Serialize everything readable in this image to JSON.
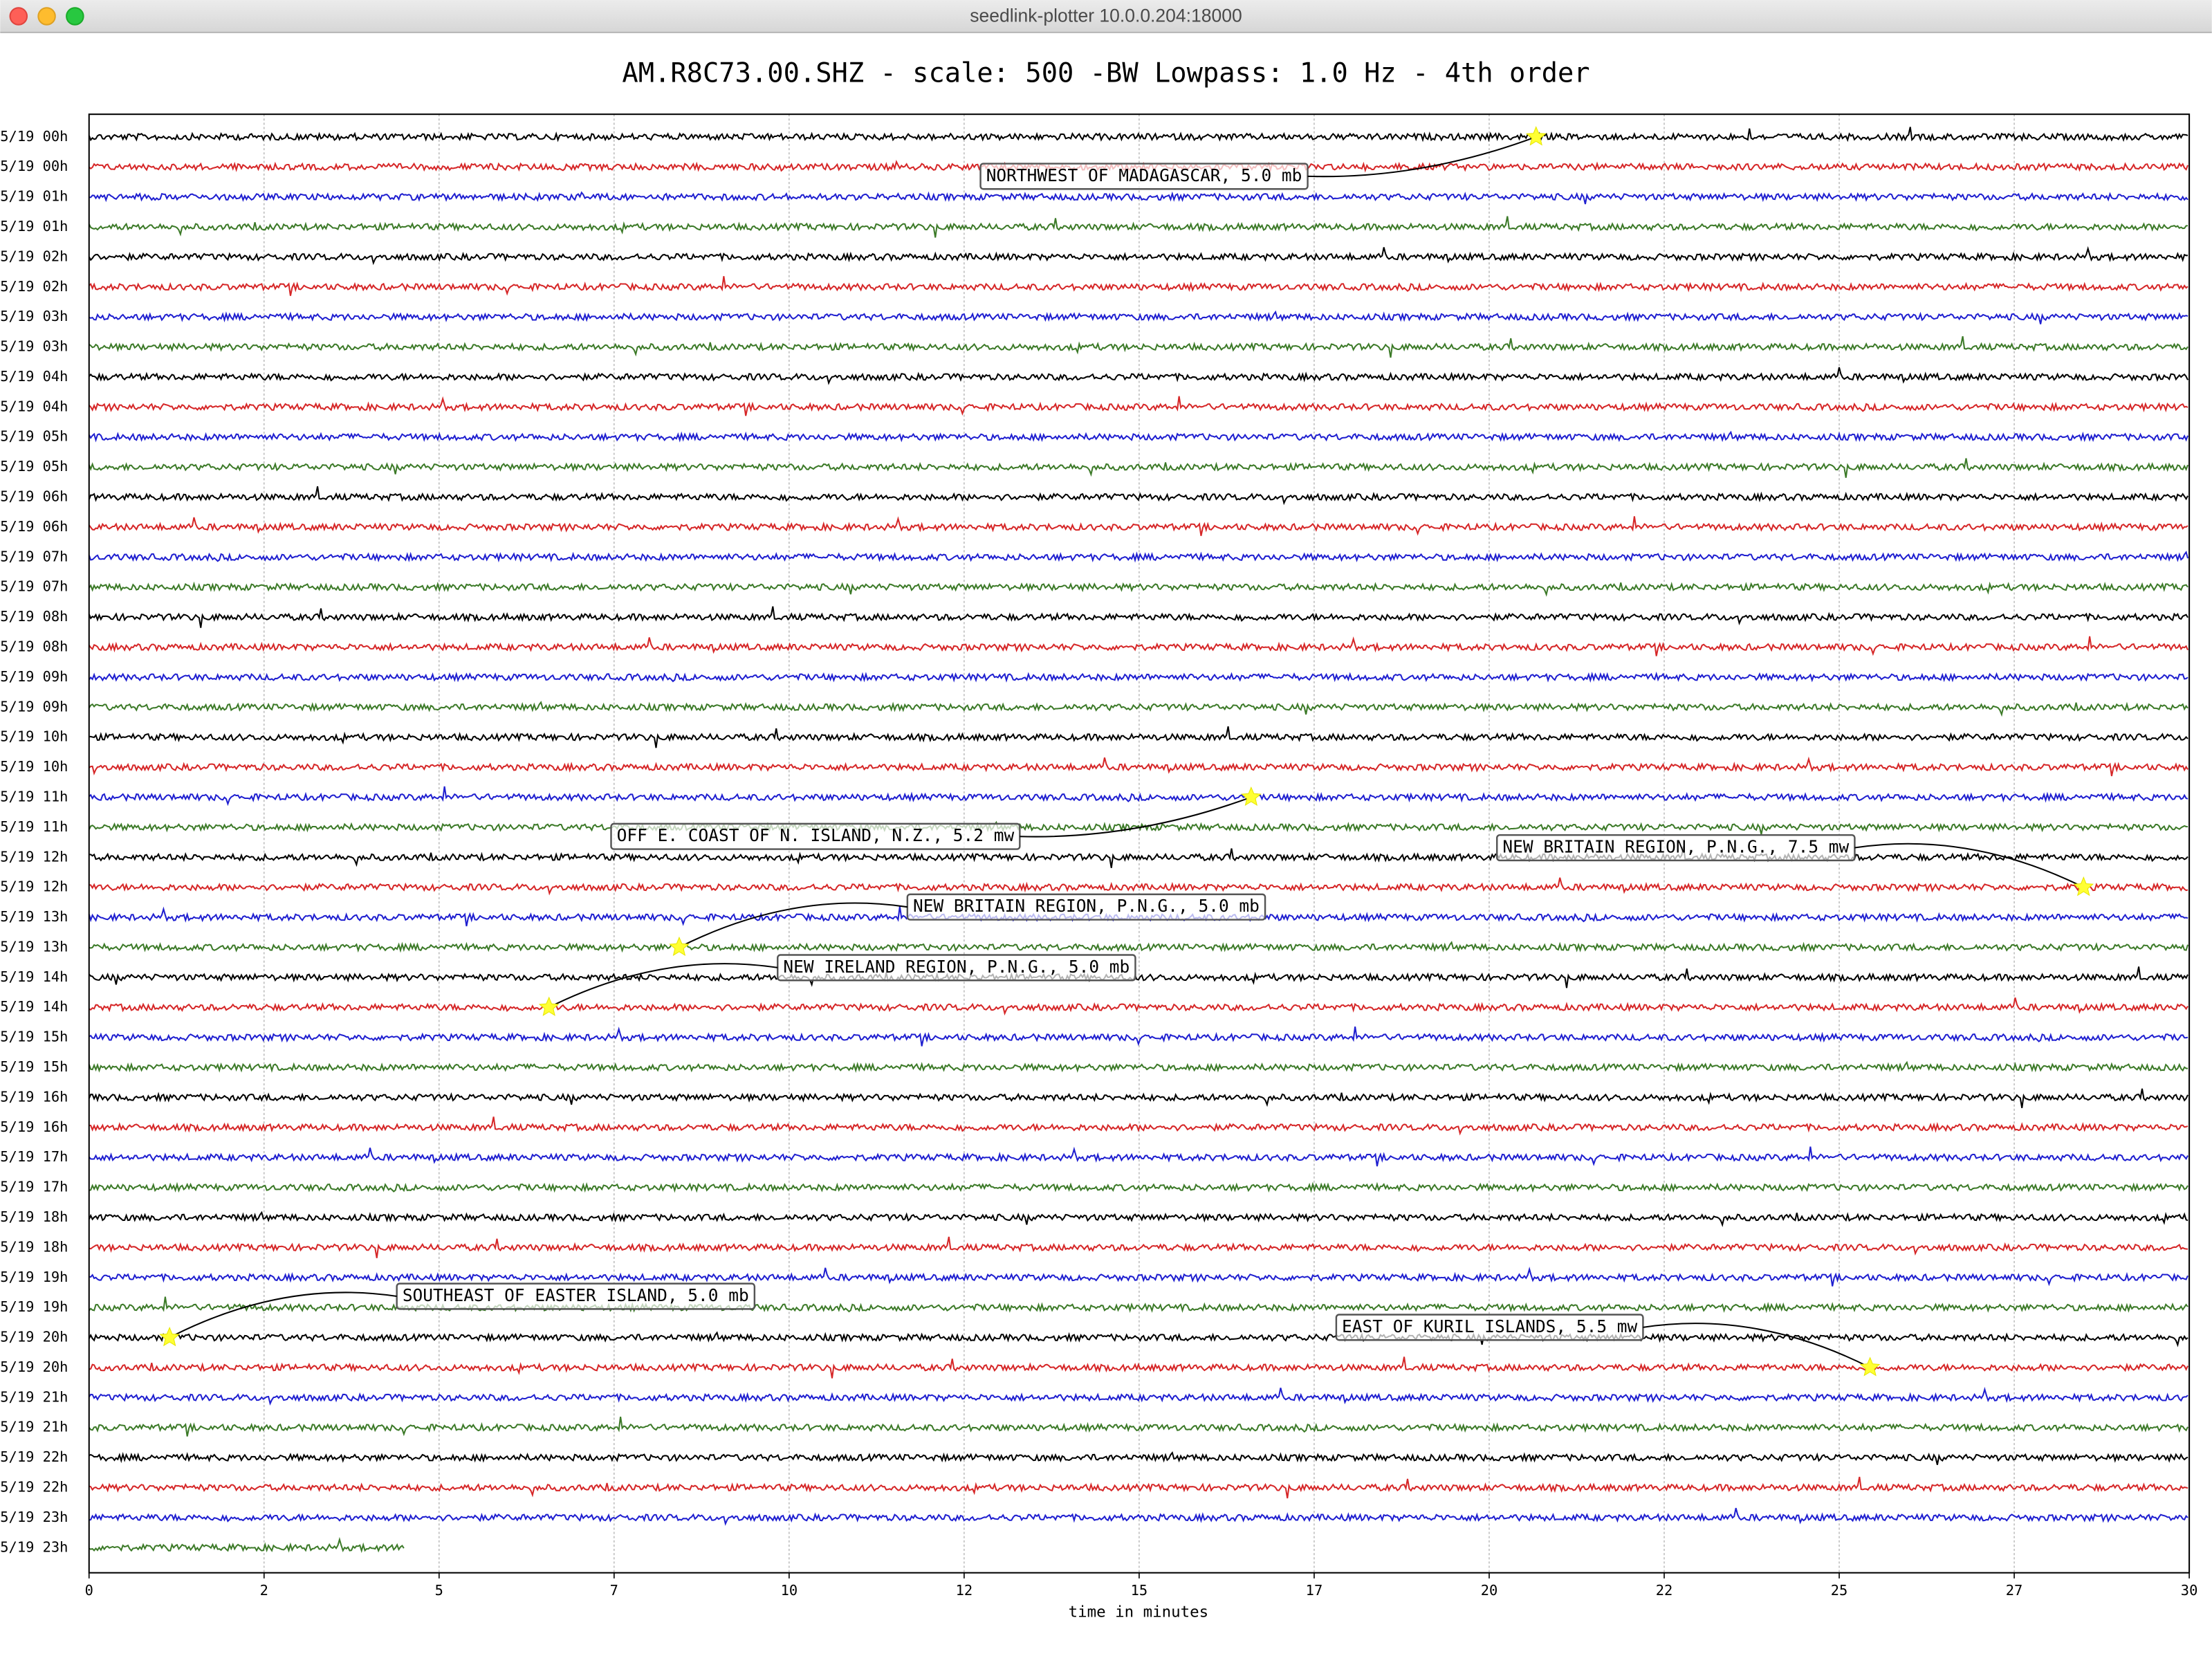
{
  "window_title": "seedlink-plotter 10.0.0.204:18000",
  "chart_data": {
    "type": "dayplot",
    "title": "AM.R8C73.00.SHZ - scale: 500 -BW Lowpass: 1.0 Hz - 4th order",
    "xlabel": "time in minutes",
    "xlim": [
      0,
      30
    ],
    "xticks": [
      0,
      {
        "value": 2.5,
        "label": "2"
      },
      5,
      {
        "value": 7.5,
        "label": "7"
      },
      10,
      {
        "value": 12.5,
        "label": "12"
      },
      15,
      {
        "value": 17.5,
        "label": "17"
      },
      20,
      {
        "value": 22.5,
        "label": "22"
      },
      25,
      {
        "value": 27.5,
        "label": "27"
      },
      30
    ],
    "grid": true,
    "colors": [
      "#000000",
      "#d62728",
      "#1f1fd0",
      "#3c7a28"
    ],
    "last_trace_end": 4.5,
    "rows": [
      "5/19 00h",
      "5/19 00h",
      "5/19 01h",
      "5/19 01h",
      "5/19 02h",
      "5/19 02h",
      "5/19 03h",
      "5/19 03h",
      "5/19 04h",
      "5/19 04h",
      "5/19 05h",
      "5/19 05h",
      "5/19 06h",
      "5/19 06h",
      "5/19 07h",
      "5/19 07h",
      "5/19 08h",
      "5/19 08h",
      "5/19 09h",
      "5/19 09h",
      "5/19 10h",
      "5/19 10h",
      "5/19 11h",
      "5/19 11h",
      "5/19 12h",
      "5/19 12h",
      "5/19 13h",
      "5/19 13h",
      "5/19 14h",
      "5/19 14h",
      "5/19 15h",
      "5/19 15h",
      "5/19 16h",
      "5/19 16h",
      "5/19 17h",
      "5/19 17h",
      "5/19 18h",
      "5/19 18h",
      "5/19 19h",
      "5/19 19h",
      "5/19 20h",
      "5/19 20h",
      "5/19 21h",
      "5/19 21h",
      "5/19 22h",
      "5/19 22h",
      "5/19 23h",
      "5/19 23h"
    ],
    "events": [
      {
        "label": "NORTHWEST OF MADAGASCAR, 5.0 mb",
        "x": 20.67,
        "row": 0
      },
      {
        "label": "OFF E. COAST OF N. ISLAND, N.Z., 5.2 mw",
        "x": 16.6,
        "row": 22
      },
      {
        "label": "NEW BRITAIN REGION, P.N.G., 7.5 mw",
        "x": 28.49,
        "row": 25
      },
      {
        "label": "NEW BRITAIN REGION, P.N.G., 5.0 mb",
        "x": 8.43,
        "row": 27
      },
      {
        "label": "NEW IRELAND REGION, P.N.G., 5.0 mb",
        "x": 6.57,
        "row": 29
      },
      {
        "label": "SOUTHEAST OF EASTER ISLAND, 5.0 mb",
        "x": 1.15,
        "row": 40
      },
      {
        "label": "EAST OF KURIL ISLANDS, 5.5 mw",
        "x": 25.44,
        "row": 41
      }
    ]
  }
}
